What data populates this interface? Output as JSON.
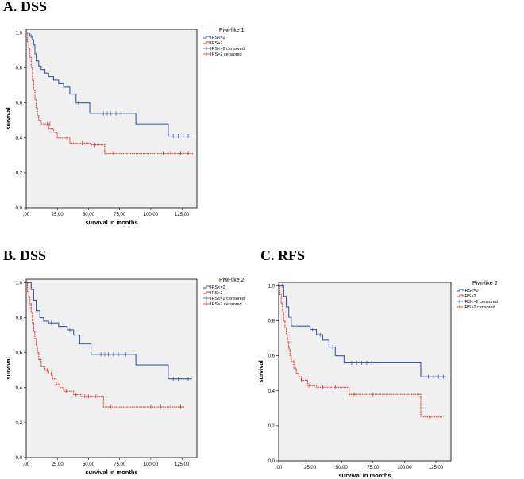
{
  "panels": [
    {
      "title": "A.  DSS"
    },
    {
      "title": "B.  DSS"
    },
    {
      "title": "C.  RFS"
    }
  ],
  "colors": {
    "series1": "#3c5aa8",
    "series2": "#e8312a",
    "plot_bg": "#f0f0f0"
  },
  "chart_data": [
    {
      "type": "line",
      "subtype": "kaplan-meier",
      "title": "",
      "legend_title": "Piwi-like 1",
      "xlabel": "survival in months",
      "ylabel": "survival",
      "xlim": [
        0,
        137
      ],
      "ylim": [
        0,
        1.02
      ],
      "xticks": [
        ",00",
        "25,00",
        "50,00",
        "75,00",
        "100,00",
        "125,00"
      ],
      "xtick_values": [
        0,
        25,
        50,
        75,
        100,
        125
      ],
      "yticks": [
        "0,0",
        "0,2",
        "0,4",
        "0,6",
        "0,8",
        "1,0"
      ],
      "ytick_values": [
        0,
        0.2,
        0.4,
        0.6,
        0.8,
        1.0
      ],
      "legend": [
        "IRS<=2",
        "IRS>2",
        "IRS<=2 censored",
        "IRS>2 censored"
      ],
      "legend_position": "right",
      "series": [
        {
          "name": "IRS<=2",
          "x": [
            0,
            1,
            3,
            5,
            6,
            7,
            8,
            10,
            12,
            15,
            18,
            22,
            26,
            30,
            35,
            40,
            43,
            51,
            65,
            88,
            114,
            133
          ],
          "y": [
            1.0,
            1.0,
            0.98,
            0.96,
            0.93,
            0.88,
            0.84,
            0.81,
            0.79,
            0.77,
            0.75,
            0.73,
            0.71,
            0.69,
            0.65,
            0.6,
            0.6,
            0.54,
            0.54,
            0.48,
            0.41,
            0.41
          ],
          "censored_x": [
            4,
            42,
            62,
            65,
            68,
            72,
            76,
            118,
            122,
            126,
            130
          ],
          "censored_y": [
            0.98,
            0.6,
            0.54,
            0.54,
            0.54,
            0.54,
            0.54,
            0.41,
            0.41,
            0.41,
            0.41
          ]
        },
        {
          "name": "IRS>2",
          "x": [
            0,
            1,
            2,
            3,
            4,
            5,
            6,
            7,
            8,
            9,
            10,
            12,
            14,
            18,
            22,
            25,
            28,
            35,
            42,
            52,
            63,
            134
          ],
          "y": [
            1.0,
            0.95,
            0.91,
            0.86,
            0.8,
            0.73,
            0.67,
            0.62,
            0.57,
            0.53,
            0.5,
            0.48,
            0.48,
            0.45,
            0.43,
            0.4,
            0.4,
            0.37,
            0.37,
            0.36,
            0.31,
            0.31
          ],
          "censored_x": [
            17,
            19,
            45,
            52,
            55,
            70,
            110,
            116,
            124,
            130
          ],
          "censored_y": [
            0.48,
            0.48,
            0.37,
            0.36,
            0.36,
            0.31,
            0.31,
            0.31,
            0.31,
            0.31
          ]
        }
      ]
    },
    {
      "type": "line",
      "subtype": "kaplan-meier",
      "title": "",
      "legend_title": "Piwi-like 2",
      "xlabel": "survival in months",
      "ylabel": "survival",
      "xlim": [
        0,
        137
      ],
      "ylim": [
        0,
        1.02
      ],
      "xticks": [
        ",00",
        "25,00",
        "50,00",
        "75,00",
        "100,00",
        "125,00"
      ],
      "xtick_values": [
        0,
        25,
        50,
        75,
        100,
        125
      ],
      "yticks": [
        "0,0",
        "0,2",
        "0,4",
        "0,6",
        "0,8",
        "1,0"
      ],
      "ytick_values": [
        0,
        0.2,
        0.4,
        0.6,
        0.8,
        1.0
      ],
      "legend": [
        "IRS<=2",
        "IRS>2",
        "IRS<=2 censored",
        "IRS>2 censored"
      ],
      "legend_position": "right",
      "series": [
        {
          "name": "IRS<=2",
          "x": [
            0,
            2,
            4,
            6,
            8,
            11,
            14,
            18,
            26,
            33,
            38,
            43,
            52,
            88,
            114,
            133
          ],
          "y": [
            1.0,
            1.0,
            0.96,
            0.9,
            0.84,
            0.8,
            0.78,
            0.77,
            0.75,
            0.73,
            0.7,
            0.65,
            0.59,
            0.53,
            0.45,
            0.45
          ],
          "censored_x": [
            4,
            20,
            35,
            60,
            63,
            66,
            70,
            74,
            80,
            118,
            122,
            126,
            130
          ],
          "censored_y": [
            0.98,
            0.77,
            0.73,
            0.59,
            0.59,
            0.59,
            0.59,
            0.59,
            0.59,
            0.45,
            0.45,
            0.45,
            0.45
          ]
        },
        {
          "name": "IRS>2",
          "x": [
            0,
            1,
            2,
            3,
            4,
            5,
            6,
            7,
            8,
            9,
            10,
            12,
            15,
            18,
            21,
            24,
            27,
            30,
            38,
            44,
            52,
            62,
            127
          ],
          "y": [
            1.0,
            0.95,
            0.92,
            0.88,
            0.83,
            0.77,
            0.72,
            0.68,
            0.64,
            0.6,
            0.56,
            0.52,
            0.5,
            0.48,
            0.45,
            0.42,
            0.4,
            0.38,
            0.36,
            0.35,
            0.35,
            0.29,
            0.29
          ],
          "censored_x": [
            17,
            20,
            32,
            40,
            47,
            50,
            56,
            68,
            100,
            108,
            116,
            124
          ],
          "censored_y": [
            0.5,
            0.48,
            0.38,
            0.36,
            0.35,
            0.35,
            0.35,
            0.29,
            0.29,
            0.29,
            0.29,
            0.29
          ]
        }
      ]
    },
    {
      "type": "line",
      "subtype": "kaplan-meier",
      "title": "",
      "legend_title": "Piwi-like 2",
      "xlabel": "survival in months",
      "ylabel": "survival",
      "xlim": [
        0,
        137
      ],
      "ylim": [
        0,
        1.02
      ],
      "xticks": [
        ",00",
        "25,00",
        "50,00",
        "75,00",
        "100,00",
        "125,00"
      ],
      "xtick_values": [
        0,
        25,
        50,
        75,
        100,
        125
      ],
      "yticks": [
        "0,0",
        "0,2",
        "0,4",
        "0,6",
        "0,8",
        "1,0"
      ],
      "ytick_values": [
        0,
        0.2,
        0.4,
        0.6,
        0.8,
        1.0
      ],
      "legend": [
        "IRS<=2",
        "IRS>2",
        "IRS<=2 censored",
        "IRS>2 censored"
      ],
      "legend_position": "right",
      "series": [
        {
          "name": "IRS<=2",
          "x": [
            0,
            2,
            4,
            6,
            8,
            10,
            25,
            30,
            35,
            40,
            45,
            52,
            113,
            133
          ],
          "y": [
            1.0,
            1.0,
            0.94,
            0.88,
            0.82,
            0.77,
            0.75,
            0.72,
            0.69,
            0.65,
            0.6,
            0.56,
            0.48,
            0.48
          ],
          "censored_x": [
            3,
            13,
            27,
            33,
            43,
            58,
            62,
            66,
            70,
            74,
            119,
            123,
            127,
            131
          ],
          "censored_y": [
            1.0,
            0.77,
            0.75,
            0.72,
            0.65,
            0.56,
            0.56,
            0.56,
            0.56,
            0.56,
            0.48,
            0.48,
            0.48,
            0.48
          ]
        },
        {
          "name": "IRS>2",
          "x": [
            0,
            1,
            2,
            3,
            4,
            5,
            6,
            7,
            8,
            9,
            10,
            12,
            14,
            16,
            18,
            20,
            23,
            30,
            56,
            113,
            130
          ],
          "y": [
            1.0,
            0.95,
            0.9,
            0.85,
            0.8,
            0.76,
            0.72,
            0.68,
            0.64,
            0.6,
            0.57,
            0.53,
            0.5,
            0.48,
            0.46,
            0.46,
            0.43,
            0.42,
            0.38,
            0.25,
            0.25
          ],
          "censored_x": [
            18,
            24,
            35,
            40,
            45,
            56,
            60,
            75,
            120,
            126
          ],
          "censored_y": [
            0.46,
            0.43,
            0.42,
            0.42,
            0.42,
            0.38,
            0.38,
            0.38,
            0.25,
            0.25
          ]
        }
      ]
    }
  ]
}
